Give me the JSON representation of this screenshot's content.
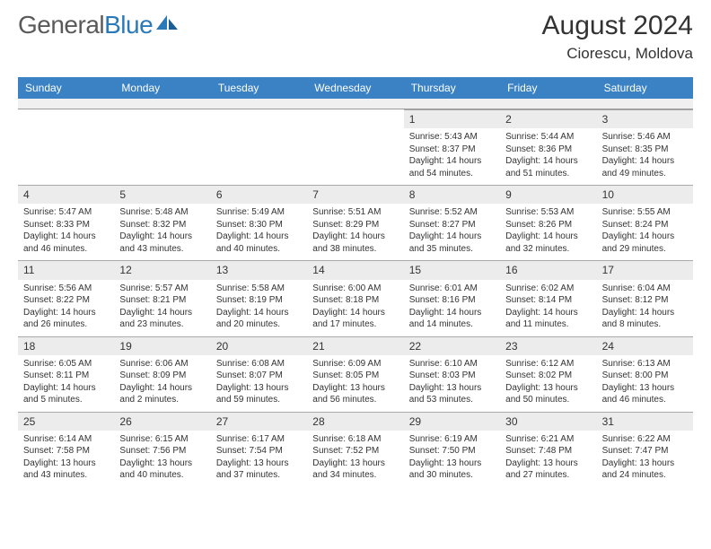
{
  "brand": {
    "part1": "General",
    "part2": "Blue"
  },
  "title": "August 2024",
  "location": "Ciorescu, Moldova",
  "colors": {
    "header_bg": "#3b82c4",
    "header_text": "#ffffff",
    "daynum_bg": "#ececec",
    "text": "#333333",
    "logo_gray": "#5a5a5a",
    "logo_blue": "#2a7ab9"
  },
  "dow": [
    "Sunday",
    "Monday",
    "Tuesday",
    "Wednesday",
    "Thursday",
    "Friday",
    "Saturday"
  ],
  "weeks": [
    [
      null,
      null,
      null,
      null,
      {
        "n": "1",
        "sr": "5:43 AM",
        "ss": "8:37 PM",
        "dl": "14 hours and 54 minutes."
      },
      {
        "n": "2",
        "sr": "5:44 AM",
        "ss": "8:36 PM",
        "dl": "14 hours and 51 minutes."
      },
      {
        "n": "3",
        "sr": "5:46 AM",
        "ss": "8:35 PM",
        "dl": "14 hours and 49 minutes."
      }
    ],
    [
      {
        "n": "4",
        "sr": "5:47 AM",
        "ss": "8:33 PM",
        "dl": "14 hours and 46 minutes."
      },
      {
        "n": "5",
        "sr": "5:48 AM",
        "ss": "8:32 PM",
        "dl": "14 hours and 43 minutes."
      },
      {
        "n": "6",
        "sr": "5:49 AM",
        "ss": "8:30 PM",
        "dl": "14 hours and 40 minutes."
      },
      {
        "n": "7",
        "sr": "5:51 AM",
        "ss": "8:29 PM",
        "dl": "14 hours and 38 minutes."
      },
      {
        "n": "8",
        "sr": "5:52 AM",
        "ss": "8:27 PM",
        "dl": "14 hours and 35 minutes."
      },
      {
        "n": "9",
        "sr": "5:53 AM",
        "ss": "8:26 PM",
        "dl": "14 hours and 32 minutes."
      },
      {
        "n": "10",
        "sr": "5:55 AM",
        "ss": "8:24 PM",
        "dl": "14 hours and 29 minutes."
      }
    ],
    [
      {
        "n": "11",
        "sr": "5:56 AM",
        "ss": "8:22 PM",
        "dl": "14 hours and 26 minutes."
      },
      {
        "n": "12",
        "sr": "5:57 AM",
        "ss": "8:21 PM",
        "dl": "14 hours and 23 minutes."
      },
      {
        "n": "13",
        "sr": "5:58 AM",
        "ss": "8:19 PM",
        "dl": "14 hours and 20 minutes."
      },
      {
        "n": "14",
        "sr": "6:00 AM",
        "ss": "8:18 PM",
        "dl": "14 hours and 17 minutes."
      },
      {
        "n": "15",
        "sr": "6:01 AM",
        "ss": "8:16 PM",
        "dl": "14 hours and 14 minutes."
      },
      {
        "n": "16",
        "sr": "6:02 AM",
        "ss": "8:14 PM",
        "dl": "14 hours and 11 minutes."
      },
      {
        "n": "17",
        "sr": "6:04 AM",
        "ss": "8:12 PM",
        "dl": "14 hours and 8 minutes."
      }
    ],
    [
      {
        "n": "18",
        "sr": "6:05 AM",
        "ss": "8:11 PM",
        "dl": "14 hours and 5 minutes."
      },
      {
        "n": "19",
        "sr": "6:06 AM",
        "ss": "8:09 PM",
        "dl": "14 hours and 2 minutes."
      },
      {
        "n": "20",
        "sr": "6:08 AM",
        "ss": "8:07 PM",
        "dl": "13 hours and 59 minutes."
      },
      {
        "n": "21",
        "sr": "6:09 AM",
        "ss": "8:05 PM",
        "dl": "13 hours and 56 minutes."
      },
      {
        "n": "22",
        "sr": "6:10 AM",
        "ss": "8:03 PM",
        "dl": "13 hours and 53 minutes."
      },
      {
        "n": "23",
        "sr": "6:12 AM",
        "ss": "8:02 PM",
        "dl": "13 hours and 50 minutes."
      },
      {
        "n": "24",
        "sr": "6:13 AM",
        "ss": "8:00 PM",
        "dl": "13 hours and 46 minutes."
      }
    ],
    [
      {
        "n": "25",
        "sr": "6:14 AM",
        "ss": "7:58 PM",
        "dl": "13 hours and 43 minutes."
      },
      {
        "n": "26",
        "sr": "6:15 AM",
        "ss": "7:56 PM",
        "dl": "13 hours and 40 minutes."
      },
      {
        "n": "27",
        "sr": "6:17 AM",
        "ss": "7:54 PM",
        "dl": "13 hours and 37 minutes."
      },
      {
        "n": "28",
        "sr": "6:18 AM",
        "ss": "7:52 PM",
        "dl": "13 hours and 34 minutes."
      },
      {
        "n": "29",
        "sr": "6:19 AM",
        "ss": "7:50 PM",
        "dl": "13 hours and 30 minutes."
      },
      {
        "n": "30",
        "sr": "6:21 AM",
        "ss": "7:48 PM",
        "dl": "13 hours and 27 minutes."
      },
      {
        "n": "31",
        "sr": "6:22 AM",
        "ss": "7:47 PM",
        "dl": "13 hours and 24 minutes."
      }
    ]
  ],
  "labels": {
    "sunrise": "Sunrise:",
    "sunset": "Sunset:",
    "daylight": "Daylight:"
  }
}
